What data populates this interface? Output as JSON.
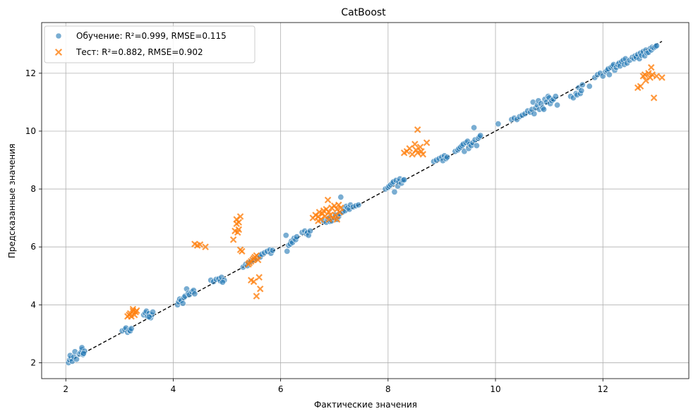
{
  "chart_data": {
    "type": "scatter",
    "title": "CatBoost",
    "xlabel": "Фактические значения",
    "ylabel": "Предсказанные значения",
    "xlim": [
      1.55,
      13.6
    ],
    "ylim": [
      1.45,
      13.75
    ],
    "xticks": [
      2,
      4,
      6,
      8,
      10,
      12
    ],
    "yticks": [
      2,
      4,
      6,
      8,
      10,
      12
    ],
    "grid": true,
    "legend_position": "top-left",
    "reference_line": {
      "style": "dashed",
      "color": "#000000",
      "from": [
        2.05,
        2.05
      ],
      "to": [
        13.1,
        13.1
      ]
    },
    "series": [
      {
        "name": "Обучение: R²=0.999, RMSE=0.115",
        "marker": "circle",
        "color": "#1f77b4",
        "points": [
          [
            2.05,
            2.0
          ],
          [
            2.07,
            2.1
          ],
          [
            2.1,
            2.15
          ],
          [
            2.08,
            2.25
          ],
          [
            2.12,
            2.05
          ],
          [
            2.15,
            2.2
          ],
          [
            2.17,
            2.38
          ],
          [
            2.2,
            2.12
          ],
          [
            2.25,
            2.3
          ],
          [
            2.28,
            2.35
          ],
          [
            2.3,
            2.45
          ],
          [
            2.3,
            2.52
          ],
          [
            2.32,
            2.28
          ],
          [
            2.35,
            2.4
          ],
          [
            2.33,
            2.32
          ],
          [
            3.05,
            3.1
          ],
          [
            3.1,
            3.15
          ],
          [
            3.12,
            3.2
          ],
          [
            3.15,
            3.05
          ],
          [
            3.18,
            3.12
          ],
          [
            3.2,
            3.1
          ],
          [
            3.22,
            3.18
          ],
          [
            3.45,
            3.65
          ],
          [
            3.48,
            3.72
          ],
          [
            3.5,
            3.78
          ],
          [
            3.52,
            3.6
          ],
          [
            3.55,
            3.7
          ],
          [
            3.58,
            3.55
          ],
          [
            3.6,
            3.65
          ],
          [
            3.62,
            3.75
          ],
          [
            3.55,
            3.58
          ],
          [
            4.08,
            4.0
          ],
          [
            4.1,
            4.1
          ],
          [
            4.12,
            4.2
          ],
          [
            4.15,
            4.15
          ],
          [
            4.18,
            4.05
          ],
          [
            4.2,
            4.25
          ],
          [
            4.22,
            4.3
          ],
          [
            4.25,
            4.55
          ],
          [
            4.28,
            4.4
          ],
          [
            4.3,
            4.35
          ],
          [
            4.35,
            4.45
          ],
          [
            4.38,
            4.5
          ],
          [
            4.4,
            4.38
          ],
          [
            4.7,
            4.85
          ],
          [
            4.75,
            4.8
          ],
          [
            4.8,
            4.88
          ],
          [
            4.85,
            4.9
          ],
          [
            4.88,
            4.82
          ],
          [
            4.9,
            4.95
          ],
          [
            4.95,
            4.85
          ],
          [
            4.92,
            4.78
          ],
          [
            5.3,
            5.3
          ],
          [
            5.35,
            5.4
          ],
          [
            5.38,
            5.35
          ],
          [
            5.4,
            5.45
          ],
          [
            5.45,
            5.5
          ],
          [
            5.5,
            5.55
          ],
          [
            5.55,
            5.6
          ],
          [
            5.6,
            5.7
          ],
          [
            5.62,
            5.65
          ],
          [
            5.65,
            5.75
          ],
          [
            5.7,
            5.8
          ],
          [
            5.75,
            5.85
          ],
          [
            5.8,
            5.9
          ],
          [
            5.82,
            5.78
          ],
          [
            5.85,
            5.88
          ],
          [
            6.1,
            6.4
          ],
          [
            6.12,
            5.85
          ],
          [
            6.15,
            6.05
          ],
          [
            6.18,
            6.1
          ],
          [
            6.2,
            6.2
          ],
          [
            6.22,
            6.15
          ],
          [
            6.25,
            6.3
          ],
          [
            6.28,
            6.25
          ],
          [
            6.3,
            6.35
          ],
          [
            6.4,
            6.5
          ],
          [
            6.45,
            6.55
          ],
          [
            6.48,
            6.45
          ],
          [
            6.5,
            6.5
          ],
          [
            6.52,
            6.4
          ],
          [
            6.55,
            6.55
          ],
          [
            6.8,
            6.9
          ],
          [
            6.85,
            6.85
          ],
          [
            6.88,
            6.95
          ],
          [
            6.9,
            7.0
          ],
          [
            6.92,
            6.88
          ],
          [
            6.95,
            6.9
          ],
          [
            7.0,
            7.0
          ],
          [
            7.02,
            7.1
          ],
          [
            7.05,
            6.95
          ],
          [
            7.08,
            7.05
          ],
          [
            7.1,
            7.15
          ],
          [
            7.12,
            7.72
          ],
          [
            7.15,
            7.2
          ],
          [
            7.18,
            7.3
          ],
          [
            7.2,
            7.25
          ],
          [
            7.22,
            7.4
          ],
          [
            7.25,
            7.35
          ],
          [
            7.28,
            7.3
          ],
          [
            7.3,
            7.45
          ],
          [
            7.35,
            7.38
          ],
          [
            7.4,
            7.42
          ],
          [
            7.45,
            7.45
          ],
          [
            7.95,
            8.0
          ],
          [
            8.0,
            8.05
          ],
          [
            8.02,
            8.1
          ],
          [
            8.05,
            8.15
          ],
          [
            8.08,
            8.2
          ],
          [
            8.1,
            8.25
          ],
          [
            8.12,
            7.9
          ],
          [
            8.15,
            8.3
          ],
          [
            8.18,
            8.1
          ],
          [
            8.2,
            8.25
          ],
          [
            8.22,
            8.35
          ],
          [
            8.25,
            8.2
          ],
          [
            8.28,
            8.3
          ],
          [
            8.3,
            8.32
          ],
          [
            8.85,
            8.95
          ],
          [
            8.9,
            9.0
          ],
          [
            8.95,
            9.05
          ],
          [
            9.0,
            9.1
          ],
          [
            9.02,
            8.98
          ],
          [
            9.05,
            9.15
          ],
          [
            9.08,
            9.05
          ],
          [
            9.1,
            9.1
          ],
          [
            9.25,
            9.3
          ],
          [
            9.3,
            9.35
          ],
          [
            9.32,
            9.4
          ],
          [
            9.35,
            9.45
          ],
          [
            9.38,
            9.5
          ],
          [
            9.4,
            9.55
          ],
          [
            9.42,
            9.3
          ],
          [
            9.45,
            9.6
          ],
          [
            9.48,
            9.65
          ],
          [
            9.5,
            9.4
          ],
          [
            9.52,
            9.55
          ],
          [
            9.55,
            9.5
          ],
          [
            9.58,
            9.6
          ],
          [
            9.6,
            10.12
          ],
          [
            9.62,
            9.7
          ],
          [
            9.65,
            9.5
          ],
          [
            9.68,
            9.75
          ],
          [
            9.7,
            9.8
          ],
          [
            9.72,
            9.85
          ],
          [
            10.05,
            10.25
          ],
          [
            10.3,
            10.4
          ],
          [
            10.35,
            10.45
          ],
          [
            10.4,
            10.4
          ],
          [
            10.45,
            10.5
          ],
          [
            10.5,
            10.55
          ],
          [
            10.55,
            10.6
          ],
          [
            10.6,
            10.7
          ],
          [
            10.65,
            10.65
          ],
          [
            10.68,
            10.75
          ],
          [
            10.7,
            11.0
          ],
          [
            10.72,
            10.6
          ],
          [
            10.75,
            10.8
          ],
          [
            10.78,
            10.9
          ],
          [
            10.8,
            11.05
          ],
          [
            10.82,
            10.75
          ],
          [
            10.85,
            10.95
          ],
          [
            10.88,
            10.8
          ],
          [
            10.9,
            10.75
          ],
          [
            10.92,
            11.1
          ],
          [
            10.95,
            11.0
          ],
          [
            10.98,
            11.2
          ],
          [
            11.0,
            11.15
          ],
          [
            11.02,
            10.95
          ],
          [
            11.05,
            11.05
          ],
          [
            11.08,
            11.1
          ],
          [
            11.12,
            11.2
          ],
          [
            11.15,
            10.9
          ],
          [
            11.4,
            11.2
          ],
          [
            11.45,
            11.15
          ],
          [
            11.5,
            11.3
          ],
          [
            11.52,
            11.25
          ],
          [
            11.55,
            11.5
          ],
          [
            11.58,
            11.3
          ],
          [
            11.6,
            11.4
          ],
          [
            11.62,
            11.6
          ],
          [
            11.75,
            11.55
          ],
          [
            11.85,
            11.85
          ],
          [
            11.9,
            11.95
          ],
          [
            11.95,
            12.0
          ],
          [
            12.0,
            11.9
          ],
          [
            12.05,
            12.05
          ],
          [
            12.08,
            12.1
          ],
          [
            12.1,
            12.15
          ],
          [
            12.12,
            11.95
          ],
          [
            12.15,
            12.2
          ],
          [
            12.18,
            12.25
          ],
          [
            12.2,
            12.3
          ],
          [
            12.22,
            12.1
          ],
          [
            12.25,
            12.2
          ],
          [
            12.28,
            12.3
          ],
          [
            12.3,
            12.35
          ],
          [
            12.32,
            12.25
          ],
          [
            12.35,
            12.4
          ],
          [
            12.38,
            12.45
          ],
          [
            12.4,
            12.3
          ],
          [
            12.42,
            12.5
          ],
          [
            12.45,
            12.35
          ],
          [
            12.5,
            12.45
          ],
          [
            12.55,
            12.55
          ],
          [
            12.58,
            12.5
          ],
          [
            12.6,
            12.6
          ],
          [
            12.62,
            12.55
          ],
          [
            12.65,
            12.65
          ],
          [
            12.68,
            12.5
          ],
          [
            12.7,
            12.7
          ],
          [
            12.72,
            12.62
          ],
          [
            12.75,
            12.75
          ],
          [
            12.78,
            12.6
          ],
          [
            12.8,
            12.8
          ],
          [
            12.82,
            12.7
          ],
          [
            12.85,
            12.72
          ],
          [
            12.88,
            12.85
          ],
          [
            12.9,
            12.8
          ],
          [
            12.92,
            12.9
          ],
          [
            12.95,
            12.88
          ],
          [
            12.98,
            12.92
          ],
          [
            13.0,
            12.95
          ]
        ]
      },
      {
        "name": "Тест: R²=0.882, RMSE=0.902",
        "marker": "x",
        "color": "#ff7f0e",
        "points": [
          [
            3.15,
            3.6
          ],
          [
            3.18,
            3.65
          ],
          [
            3.2,
            3.7
          ],
          [
            3.22,
            3.6
          ],
          [
            3.25,
            3.78
          ],
          [
            3.25,
            3.85
          ],
          [
            3.28,
            3.65
          ],
          [
            3.3,
            3.75
          ],
          [
            3.32,
            3.8
          ],
          [
            4.4,
            6.1
          ],
          [
            4.45,
            6.05
          ],
          [
            4.5,
            6.08
          ],
          [
            4.6,
            6.0
          ],
          [
            5.12,
            6.25
          ],
          [
            5.15,
            6.55
          ],
          [
            5.18,
            6.8
          ],
          [
            5.18,
            6.95
          ],
          [
            5.2,
            6.5
          ],
          [
            5.22,
            6.6
          ],
          [
            5.22,
            6.85
          ],
          [
            5.25,
            7.05
          ],
          [
            5.25,
            5.9
          ],
          [
            5.28,
            5.85
          ],
          [
            5.4,
            5.4
          ],
          [
            5.42,
            5.45
          ],
          [
            5.45,
            5.5
          ],
          [
            5.48,
            5.55
          ],
          [
            5.5,
            5.6
          ],
          [
            5.52,
            5.65
          ],
          [
            5.55,
            5.7
          ],
          [
            5.58,
            5.55
          ],
          [
            5.45,
            4.85
          ],
          [
            5.5,
            4.8
          ],
          [
            5.55,
            4.3
          ],
          [
            5.6,
            4.95
          ],
          [
            5.62,
            4.55
          ],
          [
            6.6,
            7.0
          ],
          [
            6.65,
            7.1
          ],
          [
            6.7,
            7.05
          ],
          [
            6.72,
            7.2
          ],
          [
            6.75,
            6.95
          ],
          [
            6.78,
            7.15
          ],
          [
            6.8,
            7.25
          ],
          [
            6.82,
            7.05
          ],
          [
            6.85,
            7.3
          ],
          [
            6.88,
            7.62
          ],
          [
            6.9,
            7.2
          ],
          [
            6.92,
            7.1
          ],
          [
            6.95,
            7.35
          ],
          [
            6.98,
            7.0
          ],
          [
            7.0,
            7.42
          ],
          [
            7.02,
            7.1
          ],
          [
            7.05,
            7.3
          ],
          [
            7.08,
            7.45
          ],
          [
            7.1,
            7.2
          ],
          [
            7.12,
            7.35
          ],
          [
            6.7,
            6.9
          ],
          [
            6.9,
            6.95
          ],
          [
            7.05,
            6.95
          ],
          [
            8.3,
            9.25
          ],
          [
            8.35,
            9.3
          ],
          [
            8.4,
            9.4
          ],
          [
            8.45,
            9.2
          ],
          [
            8.5,
            9.55
          ],
          [
            8.52,
            9.35
          ],
          [
            8.55,
            9.25
          ],
          [
            8.55,
            10.05
          ],
          [
            8.6,
            9.45
          ],
          [
            8.62,
            9.3
          ],
          [
            8.65,
            9.2
          ],
          [
            8.72,
            9.6
          ],
          [
            12.65,
            11.5
          ],
          [
            12.7,
            11.55
          ],
          [
            12.75,
            11.9
          ],
          [
            12.78,
            11.95
          ],
          [
            12.8,
            11.75
          ],
          [
            12.85,
            12.0
          ],
          [
            12.88,
            11.85
          ],
          [
            12.9,
            12.2
          ],
          [
            12.92,
            11.95
          ],
          [
            12.95,
            11.15
          ],
          [
            13.0,
            11.9
          ],
          [
            13.1,
            11.85
          ]
        ]
      }
    ]
  }
}
